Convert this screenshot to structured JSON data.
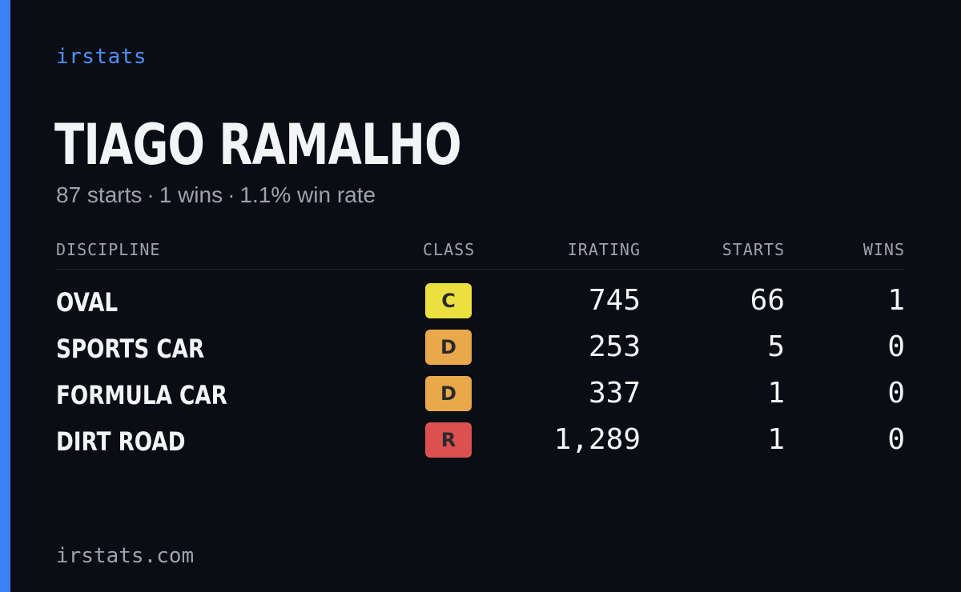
{
  "brand": "irstats",
  "player": {
    "name": "TIAGO RAMALHO"
  },
  "summary": {
    "starts": "87 starts",
    "wins": "1 wins",
    "win_rate": "1.1% win rate",
    "separator": "·"
  },
  "table": {
    "headers": {
      "discipline": "DISCIPLINE",
      "class": "CLASS",
      "irating": "IRATING",
      "starts": "STARTS",
      "wins": "WINS"
    },
    "rows": [
      {
        "discipline": "OVAL",
        "class": "C",
        "class_color": "#ebe03f",
        "irating": "745",
        "starts": "66",
        "wins": "1"
      },
      {
        "discipline": "SPORTS CAR",
        "class": "D",
        "class_color": "#e8a84b",
        "irating": "253",
        "starts": "5",
        "wins": "0"
      },
      {
        "discipline": "FORMULA CAR",
        "class": "D",
        "class_color": "#e8a84b",
        "irating": "337",
        "starts": "1",
        "wins": "0"
      },
      {
        "discipline": "DIRT ROAD",
        "class": "R",
        "class_color": "#dc5050",
        "irating": "1,289",
        "starts": "1",
        "wins": "0"
      }
    ]
  },
  "footer": {
    "url": "irstats.com"
  },
  "colors": {
    "background": "#0b0d14",
    "accent": "#3b82f6",
    "brand": "#4f8ff7",
    "muted": "#9ca3af",
    "text": "#f3f4f6"
  }
}
